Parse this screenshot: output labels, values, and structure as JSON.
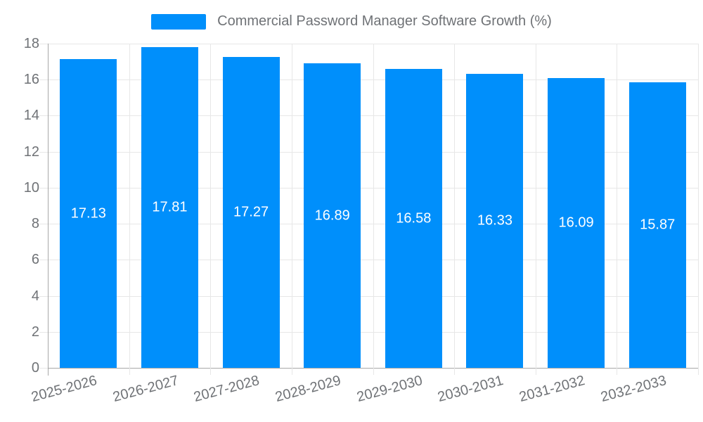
{
  "legend": {
    "swatch_color": "#008FFB",
    "label": "Commercial Password Manager Software Growth (%)"
  },
  "chart_data": {
    "type": "bar",
    "title": "Commercial Password Manager Software Growth (%)",
    "series_name": "Commercial Password Manager Software Growth (%)",
    "categories": [
      "2025-2026",
      "2026-2027",
      "2027-2028",
      "2028-2029",
      "2029-2030",
      "2030-2031",
      "2031-2032",
      "2032-2033"
    ],
    "values": [
      17.13,
      17.81,
      17.27,
      16.89,
      16.58,
      16.33,
      16.09,
      15.87
    ],
    "data_labels": [
      "17.13",
      "17.81",
      "17.27",
      "16.89",
      "16.58",
      "16.33",
      "16.09",
      "15.87"
    ],
    "xlabel": "",
    "ylabel": "",
    "ylim": [
      0,
      18
    ],
    "yticks": [
      0,
      2,
      4,
      6,
      8,
      10,
      12,
      14,
      16,
      18
    ],
    "ytick_labels": [
      "0",
      "2",
      "4",
      "6",
      "8",
      "10",
      "12",
      "14",
      "16",
      "18"
    ],
    "grid": true,
    "legend_position": "top",
    "bar_color": "#008FFB",
    "data_label_color": "#ffffff"
  },
  "colors": {
    "background": "#ffffff",
    "bar": "#008FFB",
    "gridline": "#e7e7e7",
    "axis_line": "#a8a8a8",
    "tick_mark": "#e7e7e7",
    "tick_label": "#6f7276",
    "legend_text": "#6f7276",
    "data_label": "#ffffff"
  }
}
